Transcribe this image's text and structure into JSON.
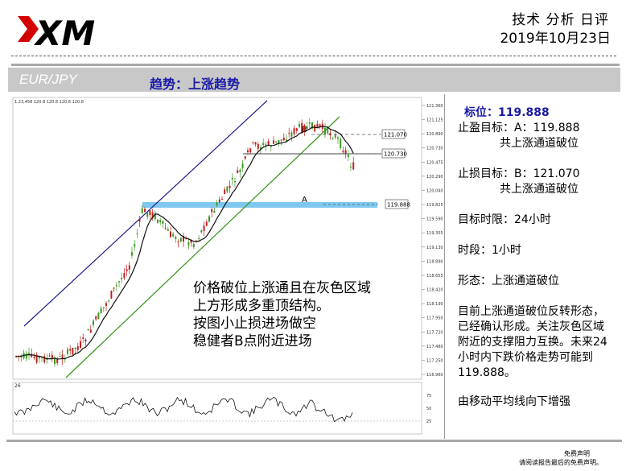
{
  "header": {
    "logo_text": "XM",
    "title": "技术 分析 日评",
    "date": "2019年10月23日"
  },
  "banner": {
    "pair": "EUR/JPY",
    "trend": "趋势：上涨趋势"
  },
  "chart": {
    "header_text": "1.23,458 120.8 120.8 120.8 120.8",
    "subpanel_label": "26",
    "annotations": {
      "a": "A",
      "b": "B"
    },
    "price_tags": [
      "121.070",
      "120.730",
      "119.888"
    ],
    "y_ticks": [
      "121.360",
      "121.125",
      "120.890",
      "120.730",
      "120.475",
      "120.290",
      "120.040",
      "119.825",
      "119.590",
      "119.355",
      "119.130",
      "118.890",
      "118.655",
      "118.420",
      "118.190",
      "117.950",
      "117.720",
      "117.480",
      "117.250",
      "116.960"
    ],
    "osc_ticks": [
      "75",
      "50",
      "25"
    ],
    "overlay_lines": [
      "价格破位上涨通且在灰色区域",
      "上方形成多重顶结构。",
      "按图小止损进场做空",
      "稳健者B点附近进场"
    ]
  },
  "colors": {
    "channel_upper": "#1c1c8c",
    "channel_lower": "#3c9a22",
    "support_zone": "#7ec8f0",
    "candle_up": "#3c9a22",
    "candle_down": "#c02020",
    "ma_line": "#111111"
  },
  "analysis": {
    "target_label": "标位：119.888",
    "tp_line1": "止盈目标：A：119.888",
    "tp_line2": "共上涨通道破位",
    "sl_line1": "止损目标：B：121.070",
    "sl_line2": "共上涨通道破位",
    "timeframe": "目标时限：24小时",
    "period": "时段：1小时",
    "pattern": "形态：上涨通道破位",
    "summary_lines": [
      "目前上涨通道破位反转形态，",
      "已经确认形成。关注灰色区域",
      "附近的支撑阻力互换。未来24",
      "小时内下跌价格走势可能到",
      "119.888。"
    ],
    "ma_note": "由移动平均线向下增强"
  },
  "footer": {
    "disclaimer_title": "免费声明",
    "disclaimer_text": "请阅读报告最后的免费声明。"
  }
}
